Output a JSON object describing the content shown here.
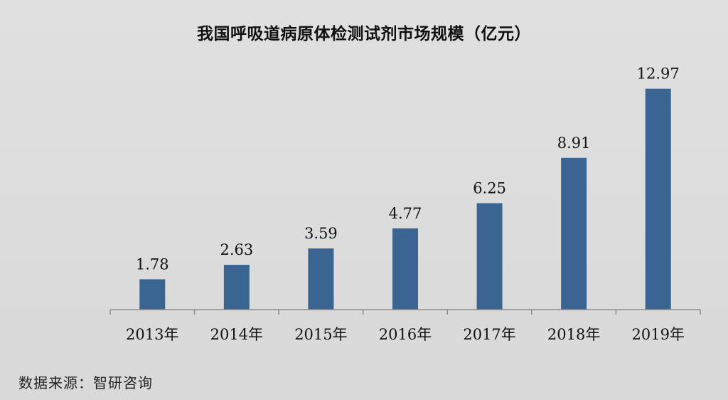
{
  "chart_data": {
    "type": "bar",
    "title": "我国呼吸道病原体检测试剂市场规模（亿元）",
    "categories": [
      "2013年",
      "2014年",
      "2015年",
      "2016年",
      "2017年",
      "2018年",
      "2019年"
    ],
    "values": [
      1.78,
      2.63,
      3.59,
      4.77,
      6.25,
      8.91,
      12.97
    ],
    "xlabel": "",
    "ylabel": "",
    "ylim": [
      0,
      14
    ],
    "bar_color": "#3a6593",
    "grid": false,
    "legend": "none"
  },
  "source_note": "数据来源：智研咨询"
}
